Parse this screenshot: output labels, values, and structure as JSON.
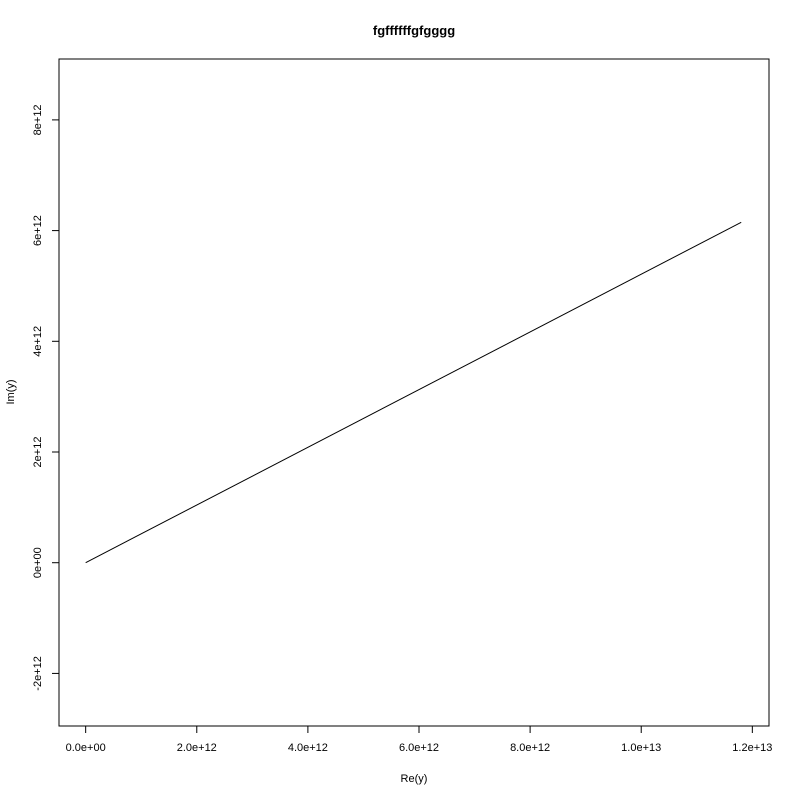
{
  "chart_data": {
    "type": "line",
    "title": "fgffffffgfgggg",
    "xlabel": "Re(y)",
    "ylabel": "Im(y)",
    "xlim": [
      -480000000000.0,
      12300000000000.0
    ],
    "ylim": [
      -2950000000000.0,
      9100000000000.0
    ],
    "xticks": [
      {
        "value": 0,
        "label": "0.0e+00"
      },
      {
        "value": 2000000000000.0,
        "label": "2.0e+12"
      },
      {
        "value": 4000000000000.0,
        "label": "4.0e+12"
      },
      {
        "value": 6000000000000.0,
        "label": "6.0e+12"
      },
      {
        "value": 8000000000000.0,
        "label": "8.0e+12"
      },
      {
        "value": 10000000000000.0,
        "label": "1.0e+13"
      },
      {
        "value": 12000000000000.0,
        "label": "1.2e+13"
      }
    ],
    "yticks": [
      {
        "value": -2000000000000.0,
        "label": "-2e+12"
      },
      {
        "value": 0,
        "label": "0e+00"
      },
      {
        "value": 2000000000000.0,
        "label": "2e+12"
      },
      {
        "value": 4000000000000.0,
        "label": "4e+12"
      },
      {
        "value": 6000000000000.0,
        "label": "6e+12"
      },
      {
        "value": 8000000000000.0,
        "label": "8e+12"
      }
    ],
    "grid": false,
    "series": [
      {
        "color": "#000000",
        "points": [
          {
            "x": 0,
            "y": 0
          },
          {
            "x": 11800000000000.0,
            "y": 6150000000000.0
          }
        ]
      }
    ]
  }
}
